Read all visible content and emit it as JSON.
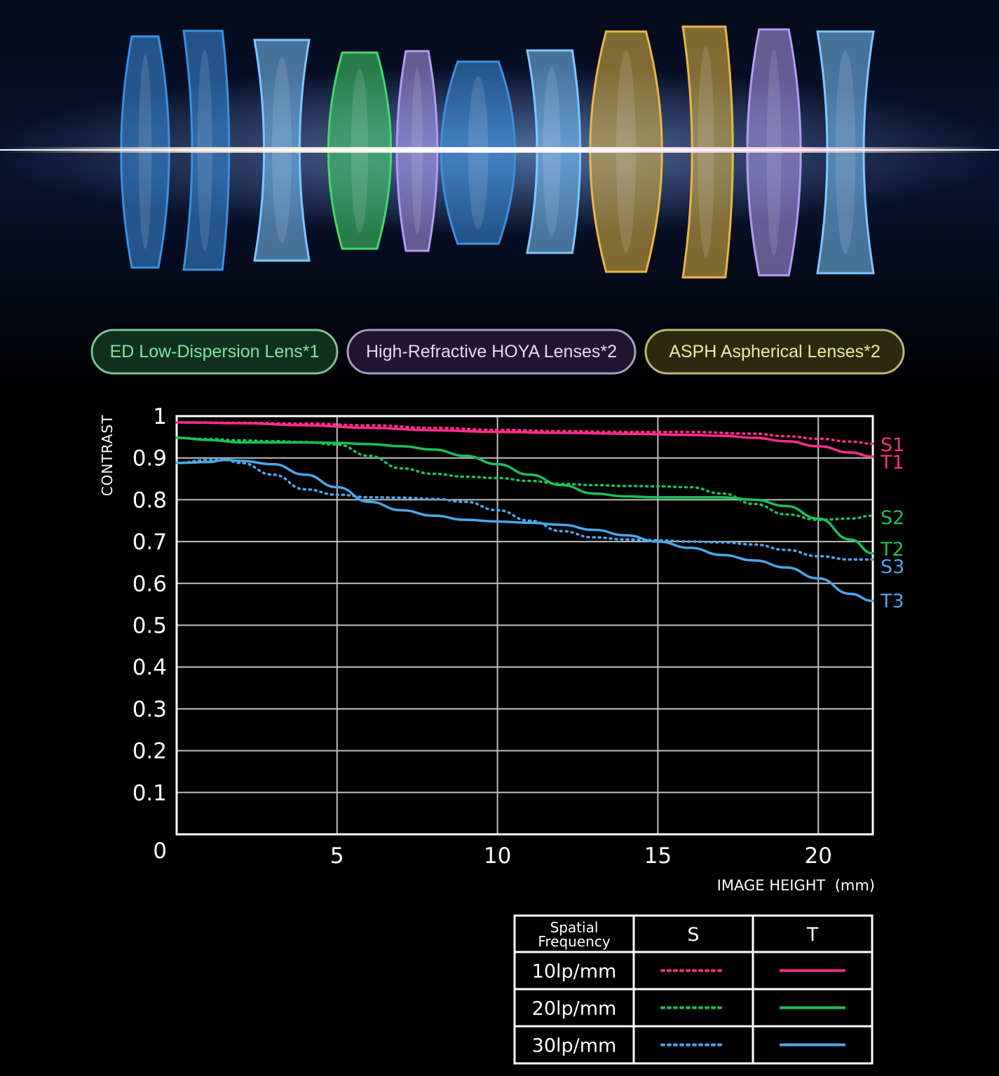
{
  "badges": [
    {
      "label": "ED Low-Dispersion Lens*1",
      "color": "#7ee6a0",
      "bg": "#10301e",
      "border": "#7fbf95"
    },
    {
      "label": "High-Refractive HOYA Lenses*2",
      "color": "#e4d8ff",
      "bg": "#201631",
      "border": "#a99bc4"
    },
    {
      "label": "ASPH Aspherical Lenses*2",
      "color": "#f2ea9c",
      "bg": "#2c2a0e",
      "border": "#bdb67a"
    }
  ],
  "lens_colors": {
    "blue": "#3d8fe0",
    "light_blue": "#7cc8ff",
    "green": "#45d86a",
    "purple": "#b29cf0",
    "gold": "#e6b845"
  },
  "chart_data": {
    "type": "line",
    "xlabel": "IMAGE HEIGHT  (mm)",
    "ylabel": "CONTRAST",
    "xlim": [
      0,
      21.7
    ],
    "ylim": [
      0,
      1
    ],
    "x_ticks": [
      0,
      5,
      10,
      15,
      20
    ],
    "y_ticks": [
      0,
      0.1,
      0.2,
      0.3,
      0.4,
      0.5,
      0.6,
      0.7,
      0.8,
      0.9,
      1
    ],
    "grid": true,
    "series": [
      {
        "name": "S1",
        "style": "dotted",
        "color": "#ff2d87",
        "x": [
          0,
          2,
          4,
          6,
          8,
          10,
          12,
          14,
          16,
          18,
          19,
          20,
          21,
          21.7
        ],
        "y": [
          0.985,
          0.984,
          0.982,
          0.978,
          0.972,
          0.967,
          0.964,
          0.962,
          0.962,
          0.958,
          0.952,
          0.946,
          0.939,
          0.934
        ]
      },
      {
        "name": "T1",
        "style": "solid",
        "color": "#ff2d87",
        "x": [
          0,
          2,
          4,
          6,
          8,
          10,
          12,
          14,
          16,
          17,
          18,
          19,
          20,
          21,
          21.7
        ],
        "y": [
          0.985,
          0.983,
          0.978,
          0.972,
          0.966,
          0.962,
          0.96,
          0.958,
          0.955,
          0.953,
          0.948,
          0.94,
          0.928,
          0.913,
          0.903
        ]
      },
      {
        "name": "S2",
        "style": "dotted",
        "color": "#19c15a",
        "x": [
          0,
          1,
          2,
          3,
          4,
          5,
          6,
          7,
          8,
          9,
          10,
          11,
          12,
          13,
          14,
          15,
          16,
          17,
          18,
          19,
          20,
          21,
          21.7
        ],
        "y": [
          0.948,
          0.945,
          0.942,
          0.94,
          0.938,
          0.932,
          0.905,
          0.875,
          0.862,
          0.855,
          0.852,
          0.845,
          0.838,
          0.835,
          0.833,
          0.832,
          0.83,
          0.815,
          0.79,
          0.765,
          0.752,
          0.755,
          0.762
        ]
      },
      {
        "name": "T2",
        "style": "solid",
        "color": "#19c15a",
        "x": [
          0,
          1,
          2,
          3,
          4,
          5,
          6,
          7,
          8,
          9,
          10,
          11,
          12,
          13,
          14,
          15,
          16,
          17,
          18,
          19,
          20,
          21,
          21.7
        ],
        "y": [
          0.948,
          0.943,
          0.937,
          0.937,
          0.937,
          0.936,
          0.933,
          0.928,
          0.92,
          0.905,
          0.885,
          0.86,
          0.835,
          0.815,
          0.808,
          0.806,
          0.806,
          0.806,
          0.8,
          0.785,
          0.755,
          0.705,
          0.672
        ]
      },
      {
        "name": "S3",
        "style": "dotted",
        "color": "#4aa6ea",
        "x": [
          0,
          1,
          1.5,
          2,
          3,
          4,
          5,
          6,
          7,
          8,
          9,
          10,
          11,
          12,
          13,
          14,
          15,
          16,
          17,
          18,
          19,
          20,
          21,
          21.7
        ],
        "y": [
          0.888,
          0.895,
          0.895,
          0.888,
          0.86,
          0.825,
          0.812,
          0.806,
          0.805,
          0.802,
          0.795,
          0.775,
          0.75,
          0.725,
          0.71,
          0.705,
          0.703,
          0.7,
          0.698,
          0.693,
          0.68,
          0.665,
          0.657,
          0.657
        ]
      },
      {
        "name": "T3",
        "style": "solid",
        "color": "#4aa6ea",
        "x": [
          0,
          1,
          1.5,
          2,
          3,
          4,
          5,
          6,
          7,
          8,
          9,
          10,
          11,
          12,
          13,
          14,
          15,
          16,
          17,
          18,
          19,
          20,
          21,
          21.7
        ],
        "y": [
          0.888,
          0.89,
          0.895,
          0.893,
          0.885,
          0.86,
          0.83,
          0.795,
          0.775,
          0.762,
          0.752,
          0.748,
          0.745,
          0.74,
          0.728,
          0.715,
          0.7,
          0.685,
          0.668,
          0.655,
          0.638,
          0.612,
          0.575,
          0.558
        ]
      }
    ],
    "legend": {
      "header": [
        "Spatial Frequency",
        "S",
        "T"
      ],
      "rows": [
        {
          "label": "10lp/mm",
          "color": "#ff2d87"
        },
        {
          "label": "20lp/mm",
          "color": "#19c15a"
        },
        {
          "label": "30lp/mm",
          "color": "#4aa6ea"
        }
      ]
    }
  }
}
